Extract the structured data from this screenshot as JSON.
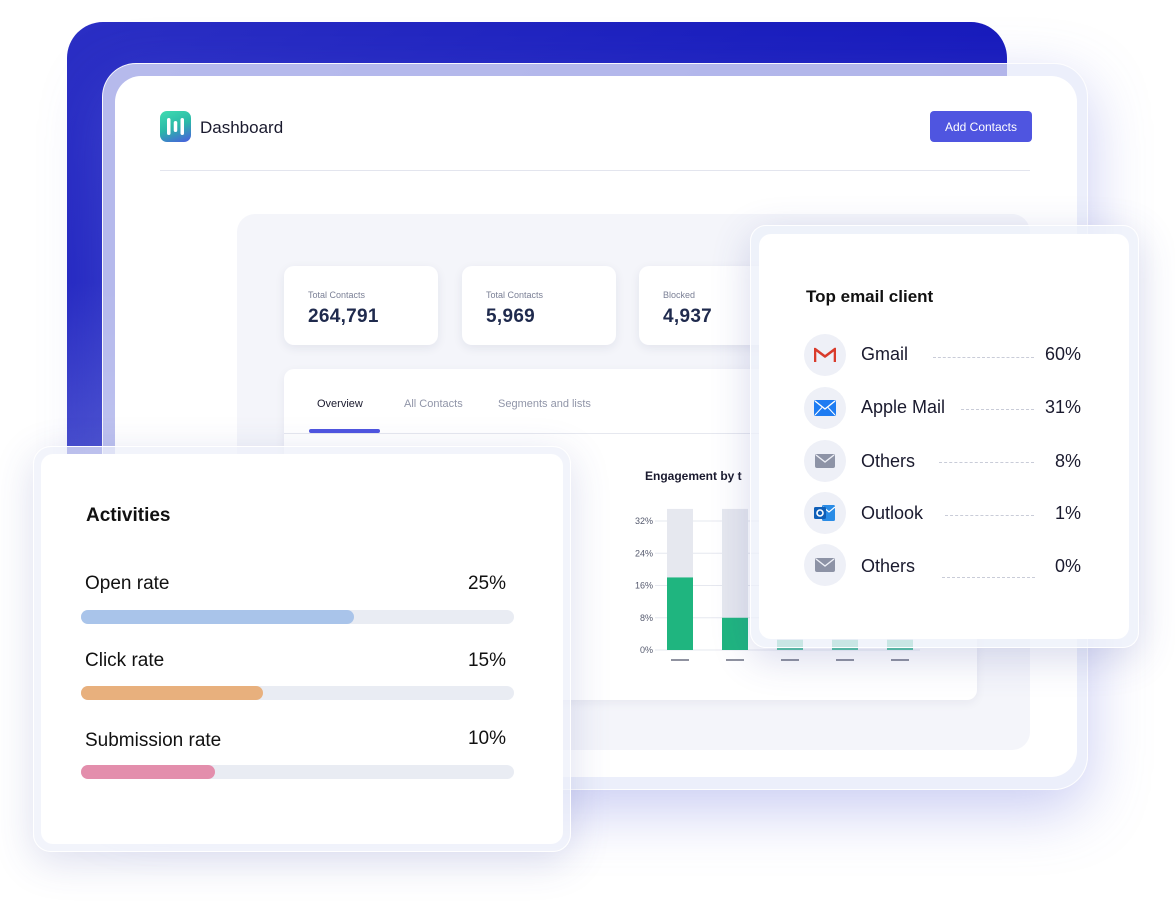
{
  "header": {
    "title": "Dashboard",
    "add_button": "Add Contacts"
  },
  "stats": [
    {
      "label": "Total Contacts",
      "value": "264,791"
    },
    {
      "label": "Total Contacts",
      "value": "5,969"
    },
    {
      "label": "Blocked",
      "value": "4,937"
    }
  ],
  "tabs": [
    {
      "label": "Overview",
      "active": true
    },
    {
      "label": "All Contacts",
      "active": false
    },
    {
      "label": "Segments and lists",
      "active": false
    }
  ],
  "chart_data": {
    "type": "bar",
    "title": "Engagement by t",
    "yticks": [
      "32%",
      "24%",
      "16%",
      "8%",
      "0%"
    ],
    "ylim": [
      0,
      32
    ],
    "categories": [
      "",
      "",
      "",
      "",
      ""
    ],
    "series": [
      {
        "values": [
          18,
          8,
          2.5,
          2.5,
          2.5
        ]
      }
    ],
    "background_values": [
      35,
      35,
      35,
      35,
      35
    ],
    "colors": {
      "bar": "#1fb57f",
      "bar_light": "#5bc6a4",
      "background": "#e6e8ef"
    }
  },
  "activities": {
    "title": "Activities",
    "items": [
      {
        "label": "Open rate",
        "value": "25%",
        "fraction": 0.63,
        "color": "#a9c4ea"
      },
      {
        "label": "Click rate",
        "value": "15%",
        "fraction": 0.42,
        "color": "#e8b07d"
      },
      {
        "label": "Submission rate",
        "value": "10%",
        "fraction": 0.31,
        "color": "#e38eac"
      }
    ]
  },
  "email_clients": {
    "title": "Top email client",
    "items": [
      {
        "name": "Gmail",
        "value": "60%",
        "icon": "gmail-icon"
      },
      {
        "name": "Apple Mail",
        "value": "31%",
        "icon": "apple-mail-icon"
      },
      {
        "name": "Others",
        "value": "8%",
        "icon": "mail-icon"
      },
      {
        "name": "Outlook",
        "value": "1%",
        "icon": "outlook-icon"
      },
      {
        "name": "Others",
        "value": "0%",
        "icon": "mail-icon"
      }
    ]
  }
}
